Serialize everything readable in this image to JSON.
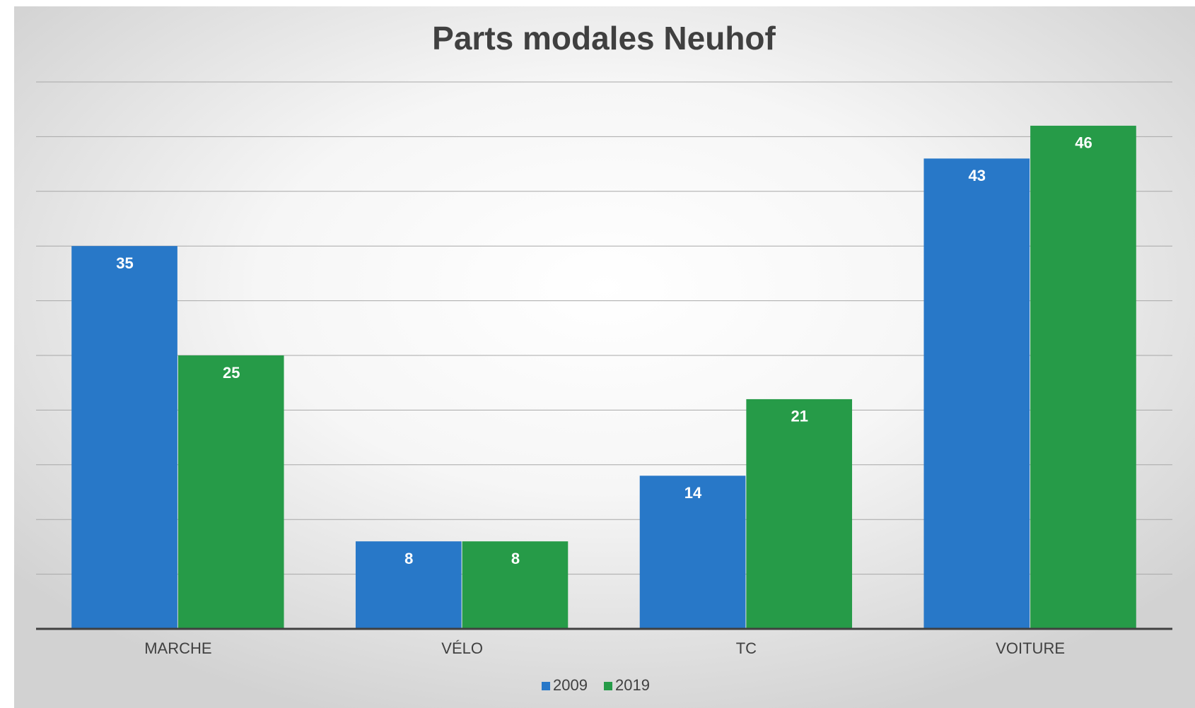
{
  "chart_data": {
    "type": "bar",
    "title": "Parts modales Neuhof",
    "categories": [
      "MARCHE",
      "VÉLO",
      "TC",
      "VOITURE"
    ],
    "series": [
      {
        "name": "2009",
        "color": "#2878c8",
        "values": [
          35,
          8,
          14,
          43
        ]
      },
      {
        "name": "2019",
        "color": "#269b48",
        "values": [
          25,
          8,
          21,
          46
        ]
      }
    ],
    "ylim": [
      0,
      50
    ],
    "yticks": [
      0,
      5,
      10,
      15,
      20,
      25,
      30,
      35,
      40,
      45,
      50
    ],
    "grid": true,
    "legend": "bottom"
  }
}
